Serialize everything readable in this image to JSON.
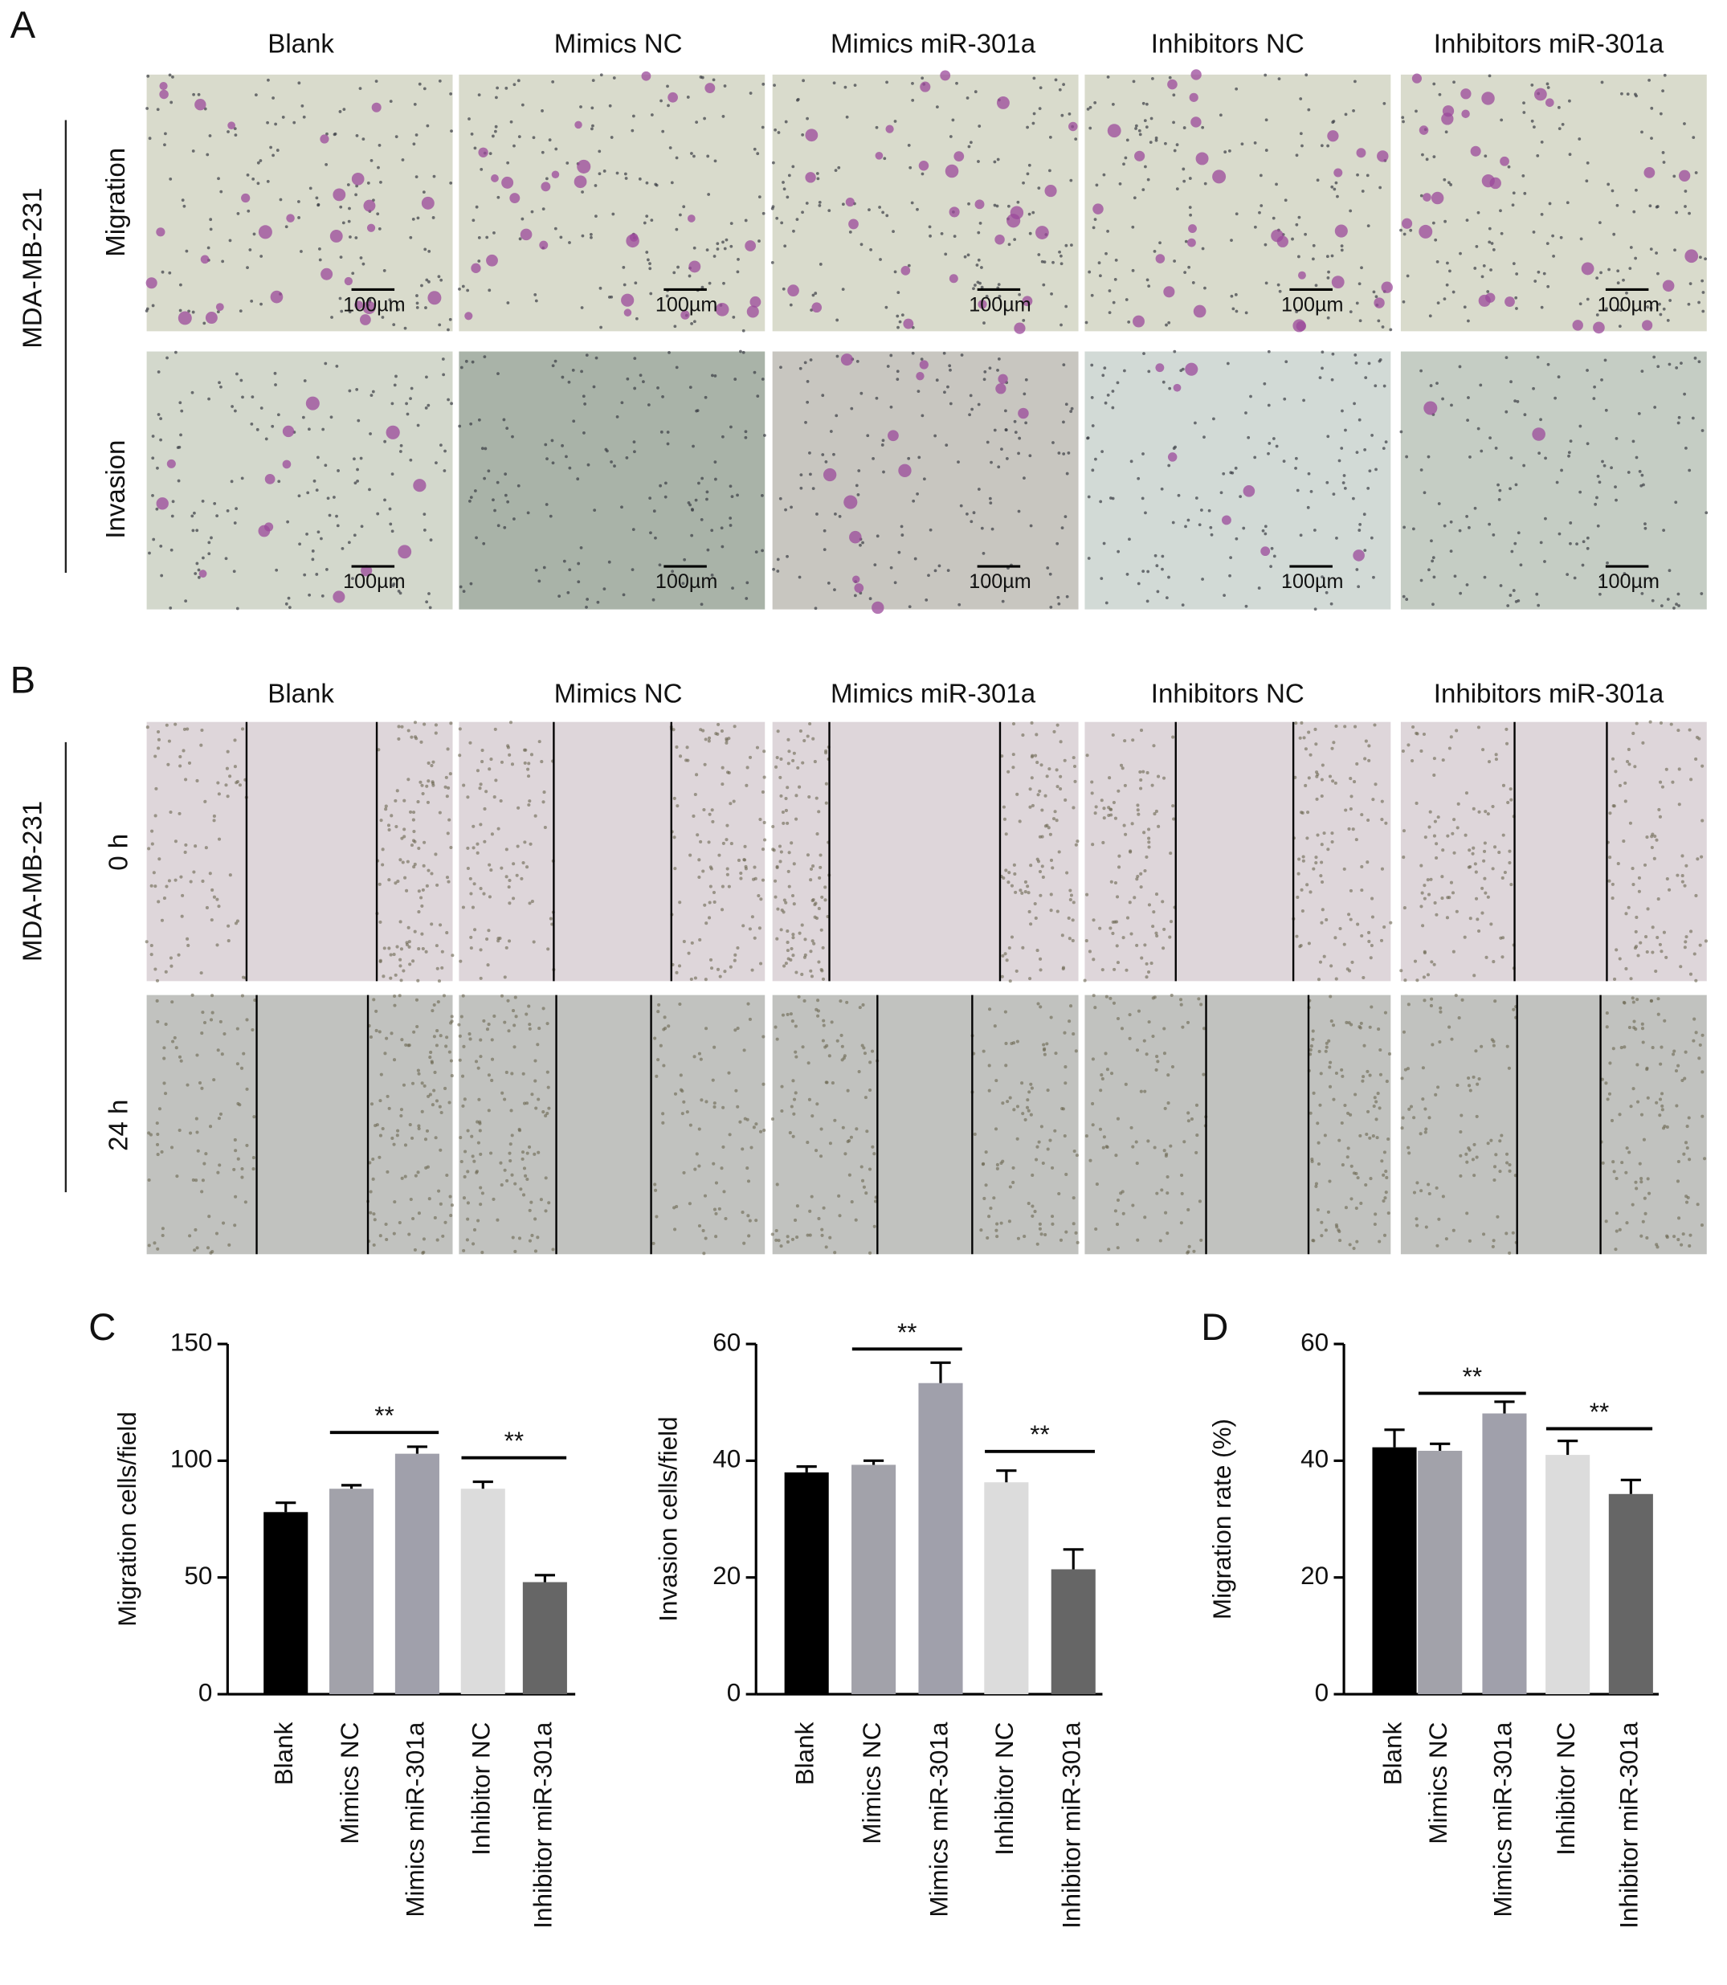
{
  "panels": {
    "A": {
      "letter": "A",
      "columns": [
        "Blank",
        "Mimics NC",
        "Mimics miR-301a",
        "Inhibitors NC",
        "Inhibitors miR-301a"
      ],
      "side_label": "MDA-MB-231",
      "rows": [
        "Migration",
        "Invasion"
      ],
      "scale_bar": "100µm"
    },
    "B": {
      "letter": "B",
      "columns": [
        "Blank",
        "Mimics NC",
        "Mimics miR-301a",
        "Inhibitors NC",
        "Inhibitors miR-301a"
      ],
      "side_label": "MDA-MB-231",
      "rows": [
        "0 h",
        "24 h"
      ]
    },
    "C": {
      "letter": "C"
    },
    "D": {
      "letter": "D"
    }
  },
  "chart_data": [
    {
      "type": "bar",
      "ylabel": "Migration cells/field",
      "categories": [
        "Blank",
        "Mimics NC",
        "Mimics miR-301a",
        "Inhibitor NC",
        "Inhibitor miR-301a"
      ],
      "values": [
        78,
        88,
        103,
        88,
        48
      ],
      "errors": [
        4,
        1.5,
        3,
        3,
        3
      ],
      "colors": [
        "#000000",
        "#a2a2aa",
        "#a0a0ab",
        "#dcdcdc",
        "#666666"
      ],
      "ylim": [
        0,
        150
      ],
      "yticks": [
        0,
        50,
        100,
        150
      ],
      "significance": [
        "**",
        "**"
      ]
    },
    {
      "type": "bar",
      "ylabel": "Invasion cells/field",
      "categories": [
        "Blank",
        "Mimics NC",
        "Mimics miR-301a",
        "Inhibitor NC",
        "Inhibitor miR-301a"
      ],
      "values": [
        38,
        39.3,
        53.3,
        36.3,
        21.4
      ],
      "errors": [
        1,
        0.7,
        3.5,
        2,
        3.4
      ],
      "colors": [
        "#000000",
        "#a2a2aa",
        "#a0a0ab",
        "#dcdcdc",
        "#666666"
      ],
      "ylim": [
        0,
        60
      ],
      "yticks": [
        0,
        20,
        40,
        60
      ],
      "significance": [
        "**",
        "**"
      ]
    },
    {
      "type": "bar",
      "ylabel": "Migration rate (%)",
      "categories": [
        "Blank",
        "Mimics NC",
        "Mimics miR-301a",
        "Inhibitor NC",
        "Inhibitor miR-301a"
      ],
      "values": [
        42.3,
        41.7,
        48.1,
        41,
        34.3
      ],
      "errors": [
        3,
        1.2,
        2,
        2.4,
        2.4
      ],
      "colors": [
        "#000000",
        "#a2a2aa",
        "#a0a0ab",
        "#dcdcdc",
        "#666666"
      ],
      "ylim": [
        0,
        60
      ],
      "yticks": [
        0,
        20,
        40,
        60
      ],
      "significance": [
        "**",
        "**"
      ]
    }
  ]
}
